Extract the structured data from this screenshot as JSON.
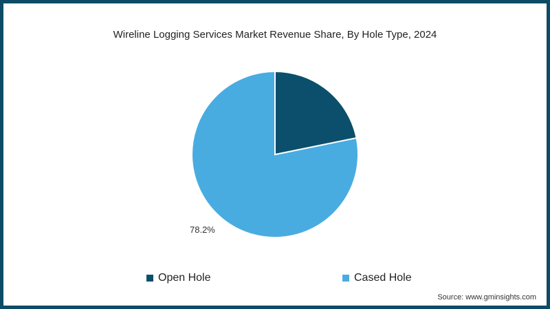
{
  "title": "Wireline Logging Services Market Revenue Share, By Hole Type, 2024",
  "colors": {
    "open_hole": "#0b4f6c",
    "cased_hole": "#49ace1",
    "border": "#0d4b66"
  },
  "slice_labels": {
    "cased_hole": "78.2%"
  },
  "legend": [
    {
      "label": "Open Hole",
      "color": "#0b4f6c"
    },
    {
      "label": "Cased Hole",
      "color": "#49ace1"
    }
  ],
  "source": "Source: www.gminsights.com",
  "chart_data": {
    "type": "pie",
    "title": "Wireline Logging Services Market Revenue Share, By Hole Type, 2024",
    "categories": [
      "Open Hole",
      "Cased Hole"
    ],
    "values": [
      21.8,
      78.2
    ],
    "unit": "%",
    "data_labels": {
      "Cased Hole": "78.2%"
    },
    "legend_position": "bottom",
    "start_angle": "12 o'clock, clockwise"
  }
}
